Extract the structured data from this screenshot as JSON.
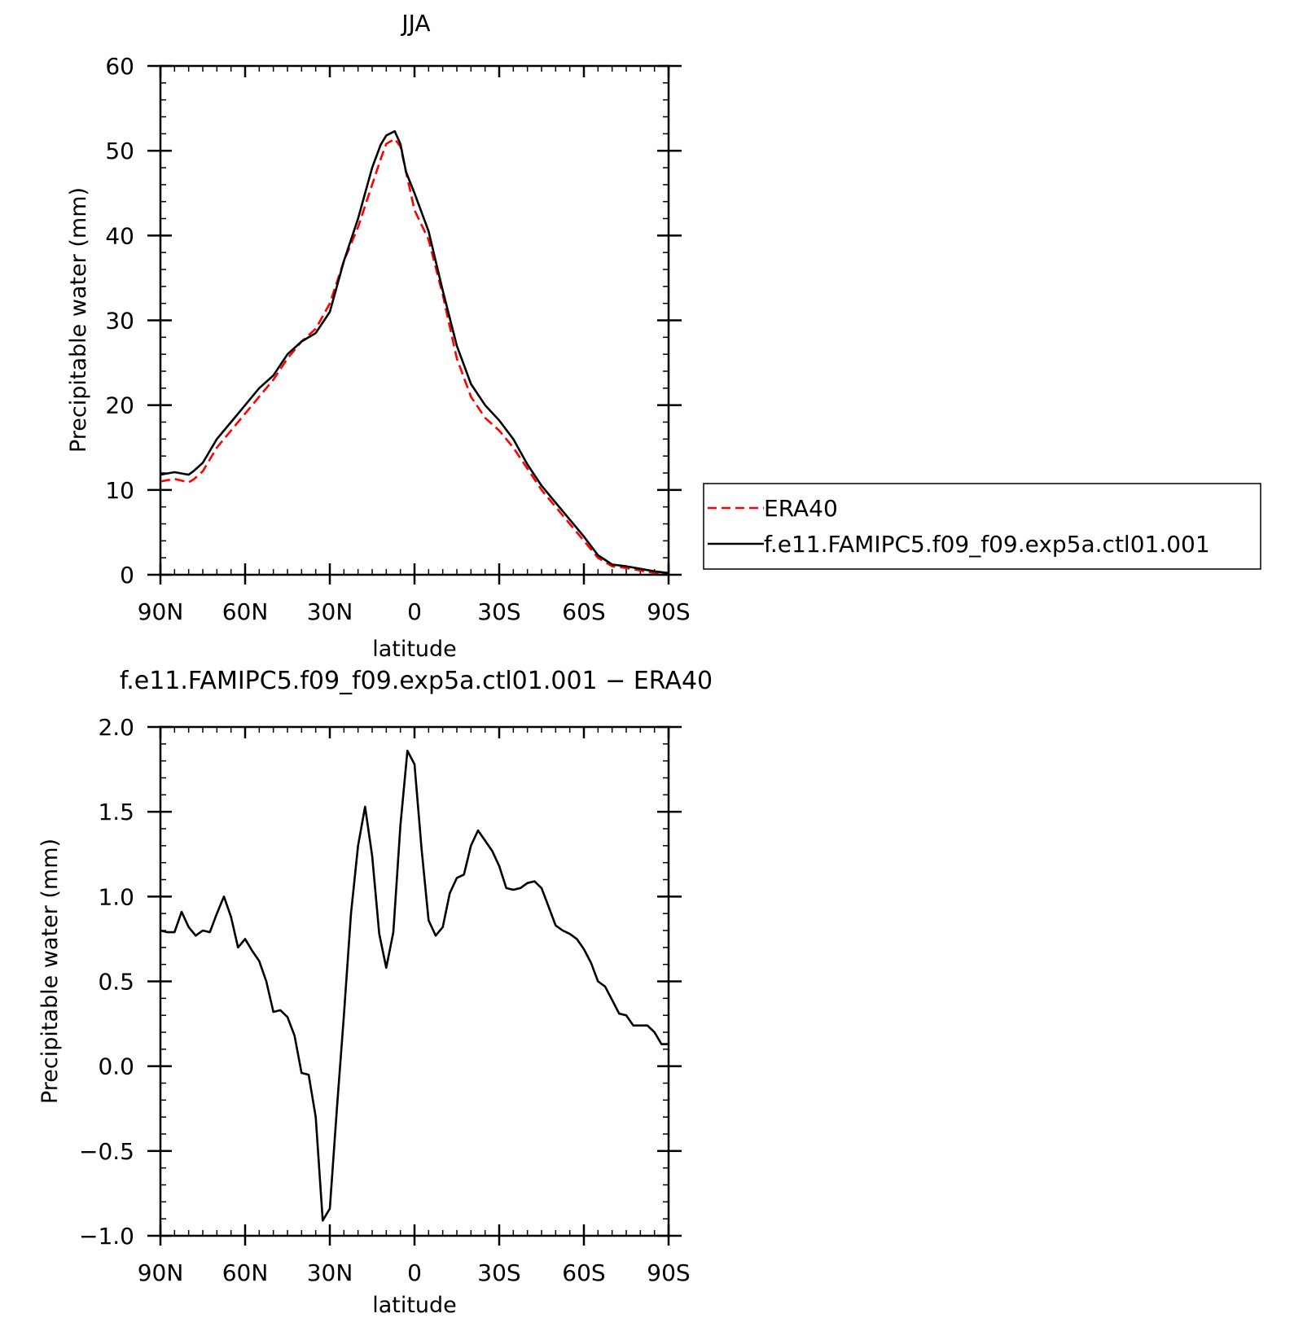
{
  "chart_data": [
    {
      "type": "line",
      "title": "JJA",
      "xlabel": "latitude",
      "ylabel": "Precipitable water (mm)",
      "xlim": [
        90,
        -90
      ],
      "ylim": [
        0,
        60
      ],
      "x_ticks": [
        90,
        60,
        30,
        0,
        -30,
        -60,
        -90
      ],
      "x_tick_labels": [
        "90N",
        "60N",
        "30N",
        "0",
        "30S",
        "60S",
        "90S"
      ],
      "y_ticks": [
        0,
        10,
        20,
        30,
        40,
        50,
        60
      ],
      "y_tick_labels": [
        "0",
        "10",
        "20",
        "30",
        "40",
        "50",
        "60"
      ],
      "legend_position": "right",
      "series": [
        {
          "name": "ERA40",
          "color": "#ff0000",
          "style": "dashed",
          "x": [
            90,
            85,
            80,
            78,
            75,
            70,
            65,
            60,
            55,
            50,
            45,
            40,
            35,
            30,
            25,
            20,
            15,
            12,
            10,
            7,
            5,
            3,
            0,
            -5,
            -10,
            -15,
            -20,
            -25,
            -30,
            -35,
            -40,
            -45,
            -50,
            -55,
            -60,
            -65,
            -70,
            -75,
            -80,
            -85,
            -90
          ],
          "y": [
            11,
            11.3,
            10.9,
            11.3,
            12.2,
            15,
            17,
            19,
            21,
            23,
            25.5,
            27.5,
            29,
            32,
            37,
            41,
            46,
            49,
            50.8,
            51.4,
            50.5,
            47.5,
            43,
            39.5,
            33,
            25.5,
            21,
            18.5,
            17,
            15,
            12.5,
            10,
            8,
            6,
            4,
            2,
            1,
            0.8,
            0.5,
            0.2,
            0.1
          ]
        },
        {
          "name": "f.e11.FAMIPC5.f09_f09.exp5a.ctl01.001",
          "color": "#000000",
          "style": "solid",
          "x": [
            90,
            85,
            80,
            78,
            75,
            70,
            65,
            60,
            55,
            50,
            45,
            40,
            35,
            30,
            25,
            20,
            15,
            12,
            10,
            7,
            5,
            3,
            0,
            -5,
            -10,
            -15,
            -20,
            -25,
            -30,
            -35,
            -40,
            -45,
            -50,
            -55,
            -60,
            -65,
            -70,
            -75,
            -80,
            -85,
            -90
          ],
          "y": [
            11.8,
            12.1,
            11.8,
            12.3,
            13.2,
            16,
            18,
            20,
            22,
            23.5,
            26,
            27.5,
            28.5,
            31,
            37,
            42,
            48,
            50.7,
            51.8,
            52.3,
            50.8,
            47.5,
            45,
            40.5,
            33.5,
            27,
            22.5,
            20,
            18.2,
            16,
            13,
            10.5,
            8.5,
            6.5,
            4.5,
            2.3,
            1.2,
            1,
            0.7,
            0.4,
            0.2
          ]
        }
      ]
    },
    {
      "type": "line",
      "title": "f.e11.FAMIPC5.f09_f09.exp5a.ctl01.001 − ERA40",
      "xlabel": "latitude",
      "ylabel": "Precipitable water (mm)",
      "xlim": [
        90,
        -90
      ],
      "ylim": [
        -1.0,
        2.0
      ],
      "x_ticks": [
        90,
        60,
        30,
        0,
        -30,
        -60,
        -90
      ],
      "x_tick_labels": [
        "90N",
        "60N",
        "30N",
        "0",
        "30S",
        "60S",
        "90S"
      ],
      "y_ticks": [
        -1.0,
        -0.5,
        0.0,
        0.5,
        1.0,
        1.5,
        2.0
      ],
      "y_tick_labels": [
        "−1.0",
        "−0.5",
        "0.0",
        "0.5",
        "1.0",
        "1.5",
        "2.0"
      ],
      "series": [
        {
          "color": "#000000",
          "style": "solid",
          "x": [
            90,
            87.5,
            85,
            82.5,
            80,
            77.5,
            75,
            72.5,
            70,
            67.5,
            65,
            62.5,
            60,
            57.5,
            55,
            52.5,
            50,
            47.5,
            45,
            42.5,
            40,
            37.5,
            35,
            32.5,
            30,
            27.5,
            25,
            22.5,
            20,
            17.5,
            15,
            12.5,
            10,
            7.5,
            5,
            2.5,
            0,
            -2.5,
            -5,
            -7.5,
            -10,
            -12.5,
            -15,
            -17.5,
            -20,
            -22.5,
            -25,
            -27.5,
            -30,
            -32.5,
            -35,
            -37.5,
            -40,
            -42.5,
            -45,
            -47.5,
            -50,
            -52.5,
            -55,
            -57.5,
            -60,
            -62.5,
            -65,
            -67.5,
            -70,
            -72.5,
            -75,
            -77.5,
            -80,
            -82.5,
            -85,
            -87.5,
            -90
          ],
          "y": [
            0.8,
            0.79,
            0.79,
            0.91,
            0.82,
            0.77,
            0.8,
            0.79,
            0.9,
            1.0,
            0.88,
            0.7,
            0.75,
            0.68,
            0.62,
            0.5,
            0.32,
            0.33,
            0.29,
            0.18,
            -0.04,
            -0.05,
            -0.3,
            -0.91,
            -0.84,
            -0.25,
            0.3,
            0.9,
            1.3,
            1.53,
            1.24,
            0.78,
            0.58,
            0.79,
            1.42,
            1.86,
            1.78,
            1.28,
            0.86,
            0.77,
            0.82,
            1.02,
            1.11,
            1.13,
            1.3,
            1.39,
            1.33,
            1.27,
            1.18,
            1.05,
            1.04,
            1.05,
            1.08,
            1.09,
            1.05,
            0.94,
            0.83,
            0.8,
            0.78,
            0.75,
            0.69,
            0.61,
            0.5,
            0.47,
            0.39,
            0.31,
            0.3,
            0.24,
            0.24,
            0.24,
            0.2,
            0.13,
            0.13
          ]
        }
      ]
    }
  ]
}
